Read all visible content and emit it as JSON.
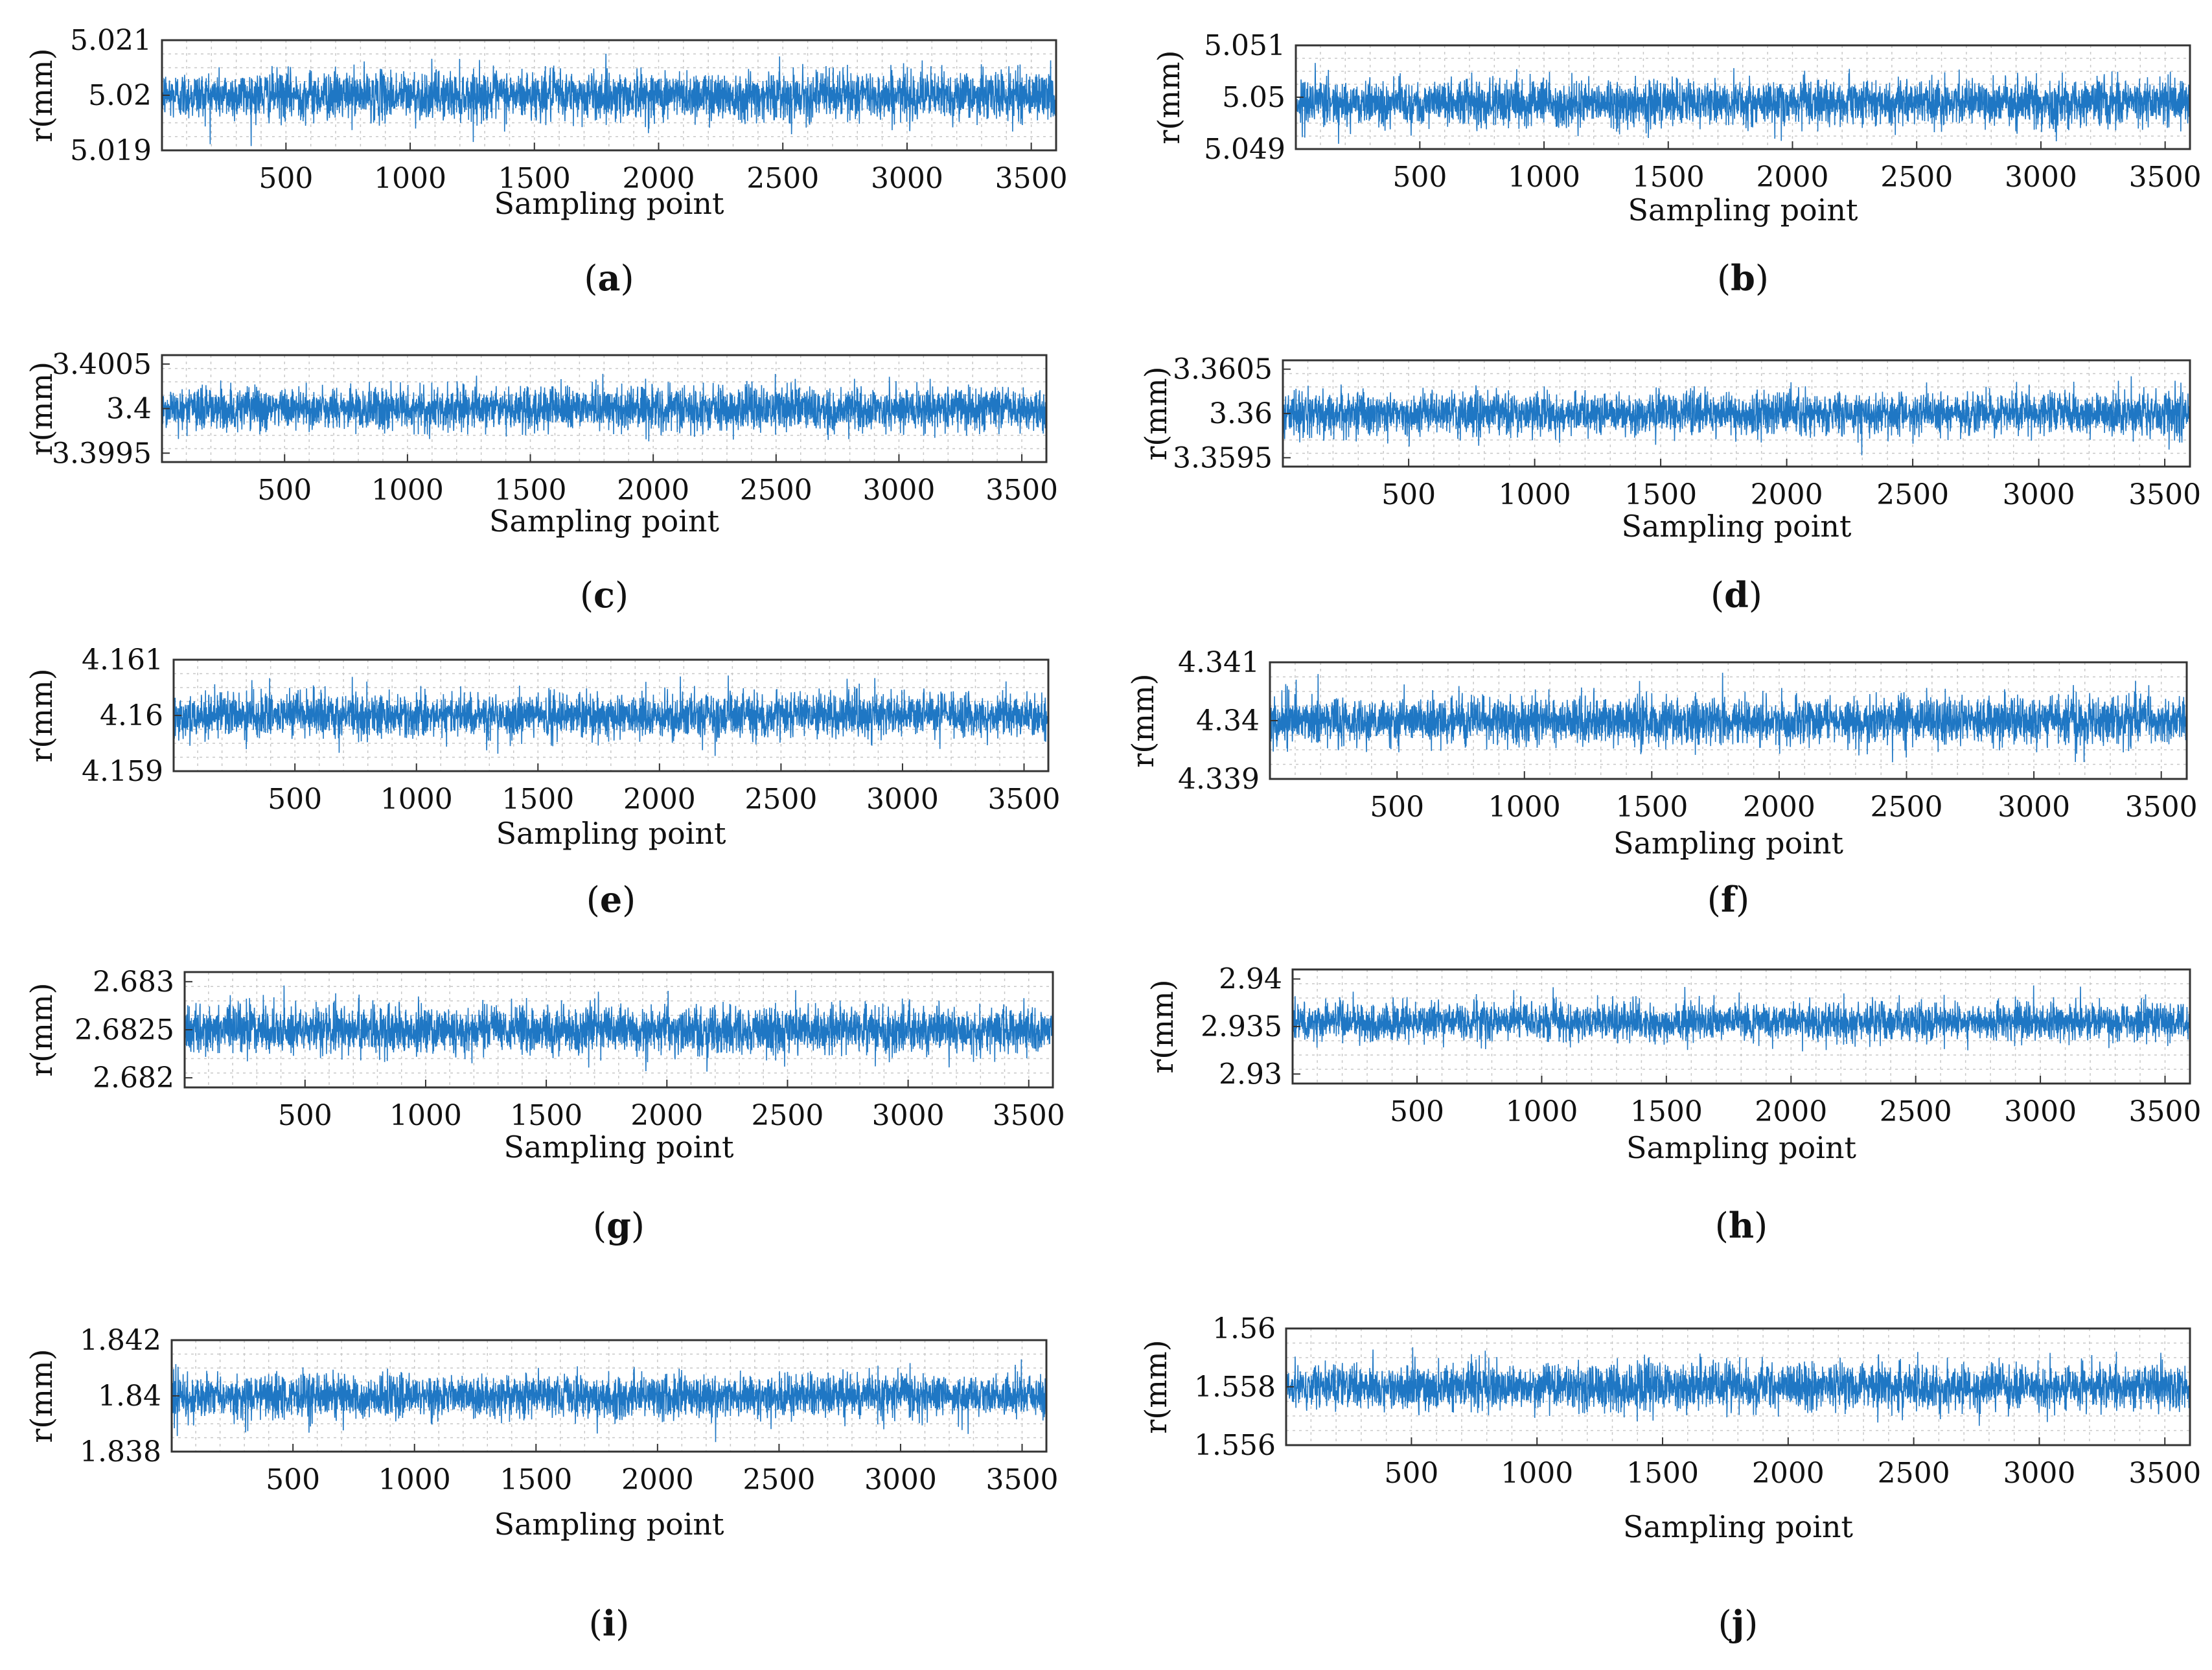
{
  "figure": {
    "series_color": "#1f77c4",
    "grid_color": "#c8c8c8",
    "axis_color": "#333333"
  },
  "chart_data": [
    {
      "id": "a",
      "type": "line",
      "panel_label": "a",
      "xlabel": "Sampling point",
      "ylabel": "r(mm)",
      "x_ticks": [
        "500",
        "1000",
        "1500",
        "2000",
        "2500",
        "3000",
        "3500"
      ],
      "xlim": [
        1,
        3600
      ],
      "y_ticks": [
        "5.021",
        "5.02",
        "5.019"
      ],
      "ylim": [
        5.019,
        5.021
      ],
      "center": 5.02,
      "spread": 0.0004,
      "n_points": 3600
    },
    {
      "id": "b",
      "type": "line",
      "panel_label": "b",
      "xlabel": "Sampling point",
      "ylabel": "r(mm)",
      "x_ticks": [
        "500",
        "1000",
        "1500",
        "2000",
        "2500",
        "3000",
        "3500"
      ],
      "xlim": [
        1,
        3600
      ],
      "y_ticks": [
        "5.051",
        "5.05",
        "5.049"
      ],
      "ylim": [
        5.049,
        5.051
      ],
      "center": 5.0499,
      "spread": 0.0004,
      "n_points": 3600
    },
    {
      "id": "c",
      "type": "line",
      "panel_label": "c",
      "xlabel": "Sampling point",
      "ylabel": "r(mm)",
      "x_ticks": [
        "500",
        "1000",
        "1500",
        "2000",
        "2500",
        "3000",
        "3500"
      ],
      "xlim": [
        1,
        3600
      ],
      "y_ticks": [
        "3.4005",
        "3.4",
        "3.3995"
      ],
      "ylim": [
        3.3994,
        3.4006
      ],
      "center": 3.4,
      "spread": 0.00022,
      "n_points": 3600
    },
    {
      "id": "d",
      "type": "line",
      "panel_label": "d",
      "xlabel": "Sampling point",
      "ylabel": "r(mm)",
      "x_ticks": [
        "500",
        "1000",
        "1500",
        "2000",
        "2500",
        "3000",
        "3500"
      ],
      "xlim": [
        1,
        3600
      ],
      "y_ticks": [
        "3.3605",
        "3.36",
        "3.3595"
      ],
      "ylim": [
        3.3594,
        3.3606
      ],
      "center": 3.36,
      "spread": 0.00022,
      "n_points": 3600
    },
    {
      "id": "e",
      "type": "line",
      "panel_label": "e",
      "xlabel": "Sampling point",
      "ylabel": "r(mm)",
      "x_ticks": [
        "500",
        "1000",
        "1500",
        "2000",
        "2500",
        "3000",
        "3500"
      ],
      "xlim": [
        1,
        3600
      ],
      "y_ticks": [
        "4.161",
        "4.16",
        "4.159"
      ],
      "ylim": [
        4.159,
        4.161
      ],
      "center": 4.16,
      "spread": 0.00036,
      "n_points": 3600
    },
    {
      "id": "f",
      "type": "line",
      "panel_label": "f",
      "xlabel": "Sampling point",
      "ylabel": "r(mm)",
      "x_ticks": [
        "500",
        "1000",
        "1500",
        "2000",
        "2500",
        "3000",
        "3500"
      ],
      "xlim": [
        1,
        3600
      ],
      "y_ticks": [
        "4.341",
        "4.34",
        "4.339"
      ],
      "ylim": [
        4.339,
        4.341
      ],
      "center": 4.34,
      "spread": 0.00036,
      "n_points": 3600
    },
    {
      "id": "g",
      "type": "line",
      "panel_label": "g",
      "xlabel": "Sampling point",
      "ylabel": "r(mm)",
      "x_ticks": [
        "500",
        "1000",
        "1500",
        "2000",
        "2500",
        "3000",
        "3500"
      ],
      "xlim": [
        1,
        3600
      ],
      "y_ticks": [
        "2.683",
        "2.6825",
        "2.682"
      ],
      "ylim": [
        2.6819,
        2.6831
      ],
      "center": 2.6825,
      "spread": 0.00022,
      "n_points": 3600
    },
    {
      "id": "h",
      "type": "line",
      "panel_label": "h",
      "xlabel": "Sampling point",
      "ylabel": "r(mm)",
      "x_ticks": [
        "500",
        "1000",
        "1500",
        "2000",
        "2500",
        "3000",
        "3500"
      ],
      "xlim": [
        1,
        3600
      ],
      "y_ticks": [
        "2.94",
        "2.935",
        "2.93"
      ],
      "ylim": [
        2.929,
        2.941
      ],
      "center": 2.9355,
      "spread": 0.0018,
      "n_points": 3600
    },
    {
      "id": "i",
      "type": "line",
      "panel_label": "i",
      "xlabel": "Sampling point",
      "ylabel": "r(mm)",
      "x_ticks": [
        "500",
        "1000",
        "1500",
        "2000",
        "2500",
        "3000",
        "3500"
      ],
      "xlim": [
        1,
        3600
      ],
      "y_ticks": [
        "1.842",
        "1.84",
        "1.838"
      ],
      "ylim": [
        1.838,
        1.842
      ],
      "center": 1.84,
      "spread": 0.0007,
      "n_points": 3600
    },
    {
      "id": "j",
      "type": "line",
      "panel_label": "j",
      "xlabel": "Sampling point",
      "ylabel": "r(mm)",
      "x_ticks": [
        "500",
        "1000",
        "1500",
        "2000",
        "2500",
        "3000",
        "3500"
      ],
      "xlim": [
        1,
        3600
      ],
      "y_ticks": [
        "1.56",
        "1.558",
        "1.556"
      ],
      "ylim": [
        1.556,
        1.56
      ],
      "center": 1.558,
      "spread": 0.0007,
      "n_points": 3600
    }
  ]
}
